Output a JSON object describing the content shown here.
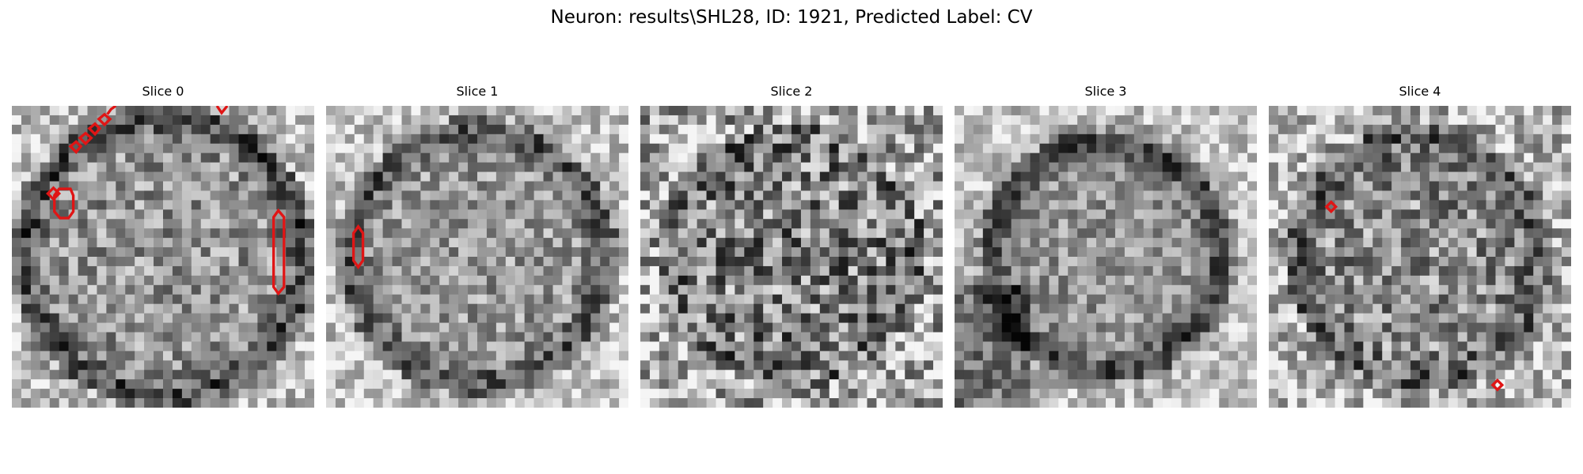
{
  "figure": {
    "title": "Neuron: results\\SHL28, ID: 1921, Predicted Label: CV"
  },
  "panels": [
    {
      "title": "Slice 0",
      "overlay_color": "#e01515"
    },
    {
      "title": "Slice 1",
      "overlay_color": "#e01515"
    },
    {
      "title": "Slice 2",
      "overlay_color": "#e01515"
    },
    {
      "title": "Slice 3",
      "overlay_color": "#e01515"
    },
    {
      "title": "Slice 4",
      "overlay_color": "#e01515"
    }
  ]
}
